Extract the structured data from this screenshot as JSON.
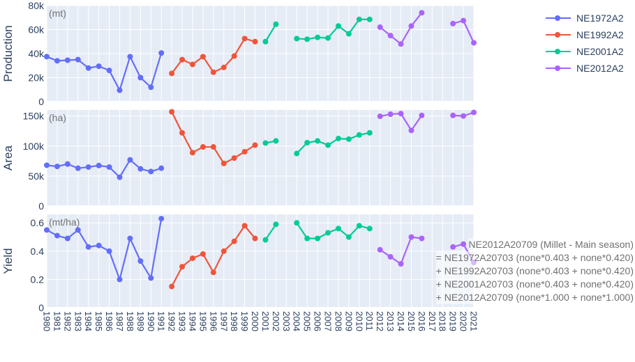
{
  "chart_data": {
    "type": "line",
    "x": [
      1980,
      1981,
      1982,
      1983,
      1984,
      1985,
      1986,
      1987,
      1988,
      1989,
      1990,
      1991,
      1992,
      1993,
      1994,
      1995,
      1996,
      1997,
      1998,
      1999,
      2000,
      2001,
      2002,
      2003,
      2004,
      2005,
      2006,
      2007,
      2008,
      2009,
      2010,
      2011,
      2012,
      2013,
      2014,
      2015,
      2016,
      2017,
      2018,
      2019,
      2020,
      2021
    ],
    "x_tick_labels": [
      "1980",
      "1981",
      "1982",
      "1983",
      "1984",
      "1985",
      "1986",
      "1987",
      "1988",
      "1989",
      "1990",
      "1991",
      "1992",
      "1993",
      "1994",
      "1995",
      "1996",
      "1997",
      "1998",
      "1999",
      "2000",
      "2001",
      "2002",
      "2003",
      "2004",
      "2005",
      "2006",
      "2007",
      "2008",
      "2009",
      "2010",
      "2011",
      "2012",
      "2013",
      "2014",
      "2015",
      "2016",
      "2017",
      "2018",
      "2019",
      "2020",
      "2021"
    ],
    "series_names": [
      "NE1972A2",
      "NE1992A2",
      "NE2001A2",
      "NE2012A2"
    ],
    "series_colors": [
      "#636efa",
      "#ef553b",
      "#00cc96",
      "#ab63fa"
    ],
    "panels": [
      {
        "ylabel": "Production",
        "unit": "(mt)",
        "ylim": [
          0,
          80000
        ],
        "yticks": [
          0,
          20000,
          40000,
          60000,
          80000
        ],
        "ytick_labels": [
          "0",
          "20k",
          "40k",
          "60k",
          "80k"
        ],
        "series": [
          {
            "name": "NE1972A2",
            "values": [
              37500,
              34000,
              34500,
              35000,
              28000,
              29500,
              26000,
              9500,
              37500,
              20000,
              12000,
              40500,
              null,
              null,
              null,
              null,
              null,
              null,
              null,
              null,
              null,
              null,
              null,
              null,
              null,
              null,
              null,
              null,
              null,
              null,
              null,
              null,
              null,
              null,
              null,
              null,
              null,
              null,
              null,
              null,
              null,
              null
            ]
          },
          {
            "name": "NE1992A2",
            "values": [
              null,
              null,
              null,
              null,
              null,
              null,
              null,
              null,
              null,
              null,
              null,
              null,
              23500,
              35000,
              31000,
              37500,
              24500,
              28500,
              38000,
              52500,
              50000,
              null,
              null,
              null,
              null,
              null,
              null,
              null,
              null,
              null,
              null,
              null,
              null,
              null,
              null,
              null,
              null,
              null,
              null,
              null,
              null,
              null
            ]
          },
          {
            "name": "NE2001A2",
            "values": [
              null,
              null,
              null,
              null,
              null,
              null,
              null,
              null,
              null,
              null,
              null,
              null,
              null,
              null,
              null,
              null,
              null,
              null,
              null,
              null,
              null,
              50000,
              64500,
              null,
              52500,
              52000,
              53500,
              53000,
              63000,
              56500,
              68500,
              68500,
              null,
              null,
              null,
              null,
              null,
              null,
              null,
              null,
              null,
              null
            ]
          },
          {
            "name": "NE2012A2",
            "values": [
              null,
              null,
              null,
              null,
              null,
              null,
              null,
              null,
              null,
              null,
              null,
              null,
              null,
              null,
              null,
              null,
              null,
              null,
              null,
              null,
              null,
              null,
              null,
              null,
              null,
              null,
              null,
              null,
              null,
              null,
              null,
              null,
              62000,
              55000,
              48000,
              63000,
              74000,
              null,
              null,
              65000,
              67500,
              49000
            ]
          }
        ]
      },
      {
        "ylabel": "Area",
        "unit": "(ha)",
        "ylim": [
          0,
          160000
        ],
        "yticks": [
          0,
          50000,
          100000,
          150000
        ],
        "ytick_labels": [
          "0",
          "50k",
          "100k",
          "150k"
        ],
        "series": [
          {
            "name": "NE1972A2",
            "values": [
              68000,
              66000,
              70000,
              63000,
              65000,
              67500,
              65000,
              48000,
              77000,
              62000,
              57500,
              63000,
              null,
              null,
              null,
              null,
              null,
              null,
              null,
              null,
              null,
              null,
              null,
              null,
              null,
              null,
              null,
              null,
              null,
              null,
              null,
              null,
              null,
              null,
              null,
              null,
              null,
              null,
              null,
              null,
              null,
              null
            ]
          },
          {
            "name": "NE1992A2",
            "values": [
              null,
              null,
              null,
              null,
              null,
              null,
              null,
              null,
              null,
              null,
              null,
              null,
              157000,
              122000,
              89000,
              98500,
              98500,
              71000,
              80000,
              90500,
              101500,
              null,
              null,
              null,
              null,
              null,
              null,
              null,
              null,
              null,
              null,
              null,
              null,
              null,
              null,
              null,
              null,
              null,
              null,
              null,
              null,
              null
            ]
          },
          {
            "name": "NE2001A2",
            "values": [
              null,
              null,
              null,
              null,
              null,
              null,
              null,
              null,
              null,
              null,
              null,
              null,
              null,
              null,
              null,
              null,
              null,
              null,
              null,
              null,
              null,
              105000,
              108500,
              null,
              87500,
              105500,
              108500,
              101500,
              112500,
              111500,
              118500,
              122000,
              null,
              null,
              null,
              null,
              null,
              null,
              null,
              null,
              null,
              null
            ]
          },
          {
            "name": "NE2012A2",
            "values": [
              null,
              null,
              null,
              null,
              null,
              null,
              null,
              null,
              null,
              null,
              null,
              null,
              null,
              null,
              null,
              null,
              null,
              null,
              null,
              null,
              null,
              null,
              null,
              null,
              null,
              null,
              null,
              null,
              null,
              null,
              null,
              null,
              149500,
              153000,
              154000,
              126000,
              151000,
              null,
              null,
              151000,
              150000,
              156000
            ]
          }
        ]
      },
      {
        "ylabel": "Yield",
        "unit": "(mt/ha)",
        "ylim": [
          0,
          0.66
        ],
        "yticks": [
          0,
          0.2,
          0.4,
          0.6
        ],
        "ytick_labels": [
          "0",
          "0.2",
          "0.4",
          "0.6"
        ],
        "series": [
          {
            "name": "NE1972A2",
            "values": [
              0.55,
              0.51,
              0.49,
              0.55,
              0.43,
              0.44,
              0.4,
              0.2,
              0.49,
              0.33,
              0.21,
              0.63,
              null,
              null,
              null,
              null,
              null,
              null,
              null,
              null,
              null,
              null,
              null,
              null,
              null,
              null,
              null,
              null,
              null,
              null,
              null,
              null,
              null,
              null,
              null,
              null,
              null,
              null,
              null,
              null,
              null,
              null
            ]
          },
          {
            "name": "NE1992A2",
            "values": [
              null,
              null,
              null,
              null,
              null,
              null,
              null,
              null,
              null,
              null,
              null,
              null,
              0.15,
              0.29,
              0.35,
              0.38,
              0.25,
              0.4,
              0.47,
              0.58,
              0.49,
              null,
              null,
              null,
              null,
              null,
              null,
              null,
              null,
              null,
              null,
              null,
              null,
              null,
              null,
              null,
              null,
              null,
              null,
              null,
              null,
              null
            ]
          },
          {
            "name": "NE2001A2",
            "values": [
              null,
              null,
              null,
              null,
              null,
              null,
              null,
              null,
              null,
              null,
              null,
              null,
              null,
              null,
              null,
              null,
              null,
              null,
              null,
              null,
              null,
              0.48,
              0.59,
              null,
              0.6,
              0.49,
              0.49,
              0.53,
              0.56,
              0.5,
              0.58,
              0.56,
              null,
              null,
              null,
              null,
              null,
              null,
              null,
              null,
              null,
              null
            ]
          },
          {
            "name": "NE2012A2",
            "values": [
              null,
              null,
              null,
              null,
              null,
              null,
              null,
              null,
              null,
              null,
              null,
              null,
              null,
              null,
              null,
              null,
              null,
              null,
              null,
              null,
              null,
              null,
              null,
              null,
              null,
              null,
              null,
              null,
              null,
              null,
              null,
              null,
              0.41,
              0.36,
              0.31,
              0.5,
              0.49,
              null,
              null,
              0.43,
              0.45,
              0.32
            ]
          }
        ]
      }
    ],
    "legend_placement": "top-right",
    "grid": true,
    "annotation": [
      "NE2012A20709 (Millet - Main season)",
      "= NE1972A20703 (none*0.403 + none*0.420)",
      "+ NE1992A20703 (none*0.403 + none*0.420)",
      "+ NE2001A20703 (none*0.403 + none*0.420)",
      "+ NE2012A20709 (none*1.000 + none*1.000)"
    ]
  }
}
